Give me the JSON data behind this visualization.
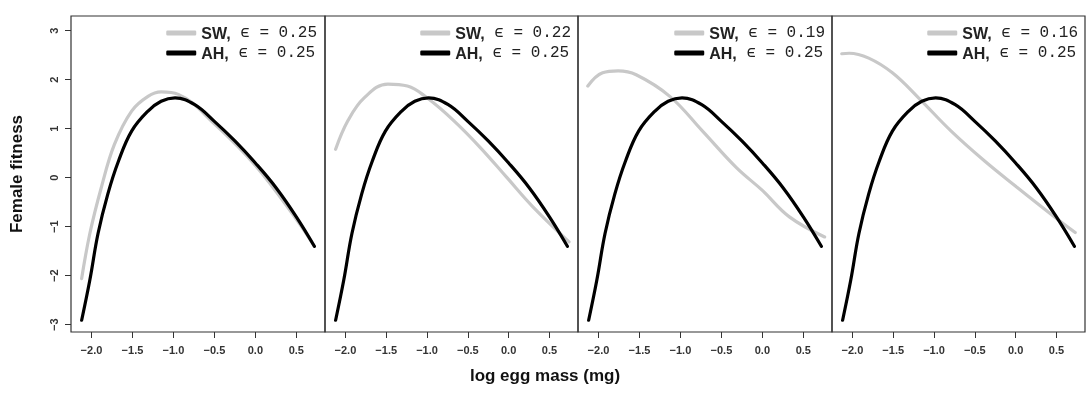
{
  "chart_data": [
    {
      "type": "line",
      "ylabel": "Female fitness",
      "legend": "top right",
      "grid": false,
      "xlim": [
        -2.25,
        0.85
      ],
      "ylim": [
        -3.15,
        3.3
      ],
      "xticks": [
        {
          "value": -2,
          "label": "−2.0"
        },
        {
          "value": -1.5,
          "label": "−1.5"
        },
        {
          "value": -1,
          "label": "−1.0"
        },
        {
          "value": -0.5,
          "label": "−0.5"
        },
        {
          "value": 0,
          "label": "0.0"
        },
        {
          "value": 0.5,
          "label": "0.5"
        }
      ],
      "yticks": [
        {
          "value": -3,
          "label": "−3"
        },
        {
          "value": -2,
          "label": "−2"
        },
        {
          "value": -1,
          "label": "−1"
        },
        0,
        1,
        2,
        3
      ],
      "series": [
        {
          "name": "SW, ϵ = 0.25",
          "color": "#c8c8c8",
          "x": [
            -2.12,
            -2.02,
            -1.88,
            -1.72,
            -1.51,
            -1.31,
            -1.15,
            -0.94,
            -0.5,
            0,
            0.5,
            0.72
          ],
          "values": [
            -2.06,
            -1.14,
            -0.2,
            0.68,
            1.36,
            1.66,
            1.75,
            1.7,
            1.1,
            0.25,
            -0.85,
            -1.4
          ]
        },
        {
          "name": "AH, ϵ = 0.25",
          "color": "#000000",
          "x": [
            -2.12,
            -2.02,
            -1.92,
            -1.8,
            -1.67,
            -1.51,
            -1.31,
            -1.15,
            -0.98,
            -0.74,
            -0.5,
            -0.25,
            0,
            0.25,
            0.5,
            0.72
          ],
          "values": [
            -2.91,
            -2.09,
            -1.14,
            -0.33,
            0.34,
            0.95,
            1.36,
            1.56,
            1.63,
            1.49,
            1.15,
            0.75,
            0.3,
            -0.2,
            -0.8,
            -1.4
          ]
        }
      ]
    },
    {
      "type": "line",
      "xlabel": "log egg mass (mg)",
      "legend": "top right",
      "grid": false,
      "tick_labels": "x",
      "xlim": [
        -2.25,
        0.85
      ],
      "ylim": [
        -3.15,
        3.3
      ],
      "xticks": [
        {
          "value": -2,
          "label": "−2.0"
        },
        {
          "value": -1.5,
          "label": "−1.5"
        },
        {
          "value": -1,
          "label": "−1.0"
        },
        {
          "value": -0.5,
          "label": "−0.5"
        },
        {
          "value": 0,
          "label": "0.0"
        },
        {
          "value": 0.5,
          "label": "0.5"
        }
      ],
      "series": [
        {
          "name": "SW, ϵ = 0.22",
          "color": "#c8c8c8",
          "x": [
            -2.12,
            -1.97,
            -1.77,
            -1.48,
            -1.24,
            -1.0,
            -0.67,
            -0.35,
            -0.02,
            0.3,
            0.74
          ],
          "values": [
            0.58,
            1.16,
            1.63,
            1.91,
            1.87,
            1.63,
            1.16,
            0.62,
            0.0,
            -0.6,
            -1.31
          ]
        },
        {
          "name": "AH, ϵ = 0.25",
          "color": "#000000",
          "x": [
            -2.12,
            -2.02,
            -1.92,
            -1.8,
            -1.67,
            -1.51,
            -1.31,
            -1.15,
            -0.98,
            -0.74,
            -0.5,
            -0.25,
            0,
            0.25,
            0.5,
            0.72
          ],
          "values": [
            -2.91,
            -2.09,
            -1.14,
            -0.33,
            0.34,
            0.95,
            1.36,
            1.56,
            1.63,
            1.49,
            1.15,
            0.75,
            0.3,
            -0.2,
            -0.8,
            -1.4
          ]
        }
      ]
    },
    {
      "type": "line",
      "legend": "top right",
      "grid": false,
      "tick_labels": "x",
      "xlim": [
        -2.25,
        0.85
      ],
      "ylim": [
        -3.15,
        3.3
      ],
      "xticks": [
        {
          "value": -2,
          "label": "−2.0"
        },
        {
          "value": -1.5,
          "label": "−1.5"
        },
        {
          "value": -1,
          "label": "−1.0"
        },
        {
          "value": -0.5,
          "label": "−0.5"
        },
        {
          "value": 0,
          "label": "0.0"
        },
        {
          "value": 0.5,
          "label": "0.5"
        }
      ],
      "series": [
        {
          "name": "SW, ϵ = 0.19",
          "color": "#c8c8c8",
          "x": [
            -2.13,
            -1.95,
            -1.76,
            -1.54,
            -1.13,
            -0.73,
            -0.32,
            0.0,
            0.33,
            0.76
          ],
          "values": [
            1.87,
            2.14,
            2.18,
            2.1,
            1.66,
            0.95,
            0.21,
            -0.26,
            -0.8,
            -1.21
          ]
        },
        {
          "name": "AH, ϵ = 0.25",
          "color": "#000000",
          "x": [
            -2.12,
            -2.02,
            -1.92,
            -1.8,
            -1.67,
            -1.51,
            -1.31,
            -1.15,
            -0.98,
            -0.74,
            -0.5,
            -0.25,
            0,
            0.25,
            0.5,
            0.72
          ],
          "values": [
            -2.91,
            -2.09,
            -1.14,
            -0.33,
            0.34,
            0.95,
            1.36,
            1.56,
            1.63,
            1.49,
            1.15,
            0.75,
            0.3,
            -0.2,
            -0.8,
            -1.4
          ]
        }
      ]
    },
    {
      "type": "line",
      "legend": "top right",
      "grid": false,
      "tick_labels": "x",
      "xlim": [
        -2.25,
        0.85
      ],
      "ylim": [
        -3.15,
        3.3
      ],
      "xticks": [
        {
          "value": -2,
          "label": "−2.0"
        },
        {
          "value": -1.5,
          "label": "−1.5"
        },
        {
          "value": -1,
          "label": "−1.0"
        },
        {
          "value": -0.5,
          "label": "−0.5"
        },
        {
          "value": 0,
          "label": "0.0"
        },
        {
          "value": 0.5,
          "label": "0.5"
        }
      ],
      "series": [
        {
          "name": "SW, ϵ = 0.16",
          "color": "#c8c8c8",
          "x": [
            -2.13,
            -2.04,
            -1.8,
            -1.51,
            -1.19,
            -0.79,
            -0.38,
            0.02,
            0.43,
            0.73
          ],
          "values": [
            2.53,
            2.54,
            2.44,
            2.14,
            1.63,
            0.95,
            0.34,
            -0.2,
            -0.74,
            -1.12
          ]
        },
        {
          "name": "AH, ϵ = 0.25",
          "color": "#000000",
          "x": [
            -2.12,
            -2.02,
            -1.92,
            -1.8,
            -1.67,
            -1.51,
            -1.31,
            -1.15,
            -0.98,
            -0.74,
            -0.5,
            -0.25,
            0,
            0.25,
            0.5,
            0.72
          ],
          "values": [
            -2.91,
            -2.09,
            -1.14,
            -0.33,
            0.34,
            0.95,
            1.36,
            1.56,
            1.63,
            1.49,
            1.15,
            0.75,
            0.3,
            -0.2,
            -0.8,
            -1.4
          ]
        }
      ]
    }
  ]
}
